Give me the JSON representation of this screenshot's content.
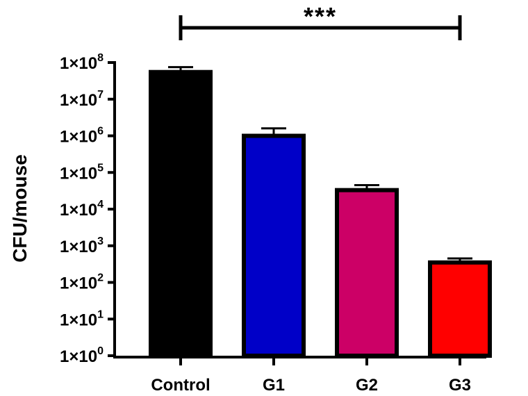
{
  "chart_data": {
    "type": "bar",
    "scale": "log10",
    "title": "",
    "xlabel": "",
    "ylabel": "CFU/mouse",
    "ylim": [
      1,
      100000000
    ],
    "y_ticks": [
      {
        "value": 1,
        "base": "1×10",
        "exp": "0"
      },
      {
        "value": 10,
        "base": "1×10",
        "exp": "1"
      },
      {
        "value": 100,
        "base": "1×10",
        "exp": "2"
      },
      {
        "value": 1000,
        "base": "1×10",
        "exp": "3"
      },
      {
        "value": 10000,
        "base": "1×10",
        "exp": "4"
      },
      {
        "value": 100000,
        "base": "1×10",
        "exp": "5"
      },
      {
        "value": 1000000,
        "base": "1×10",
        "exp": "6"
      },
      {
        "value": 10000000,
        "base": "1×10",
        "exp": "7"
      },
      {
        "value": 100000000,
        "base": "1×10",
        "exp": "8"
      }
    ],
    "categories": [
      "Control",
      "G1",
      "G2",
      "G3"
    ],
    "values": [
      55000000,
      1000000,
      33000,
      350
    ],
    "error_upper": [
      75000000,
      1600000,
      45000,
      450
    ],
    "colors": [
      "#000000",
      "#0000c8",
      "#cc0066",
      "#ff0000"
    ],
    "significance": {
      "from": "Control",
      "to": "G3",
      "label": "***"
    }
  }
}
